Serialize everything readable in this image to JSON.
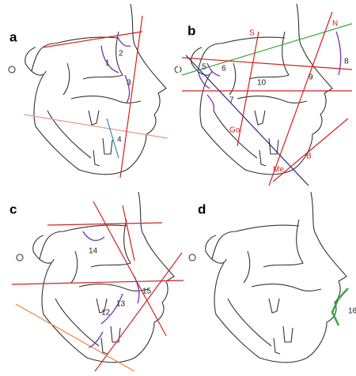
{
  "panels": [
    {
      "label": "a",
      "annotations": [
        "1",
        "2",
        "3",
        "4"
      ]
    },
    {
      "label": "b",
      "annotations": [
        "S",
        "N",
        "5",
        "6",
        "7",
        "8",
        "9",
        "10",
        "Go",
        "Me",
        "B"
      ]
    },
    {
      "label": "c",
      "annotations": [
        "14",
        "13",
        "15",
        "12"
      ]
    },
    {
      "label": "d",
      "annotations": [
        "16"
      ]
    }
  ]
}
